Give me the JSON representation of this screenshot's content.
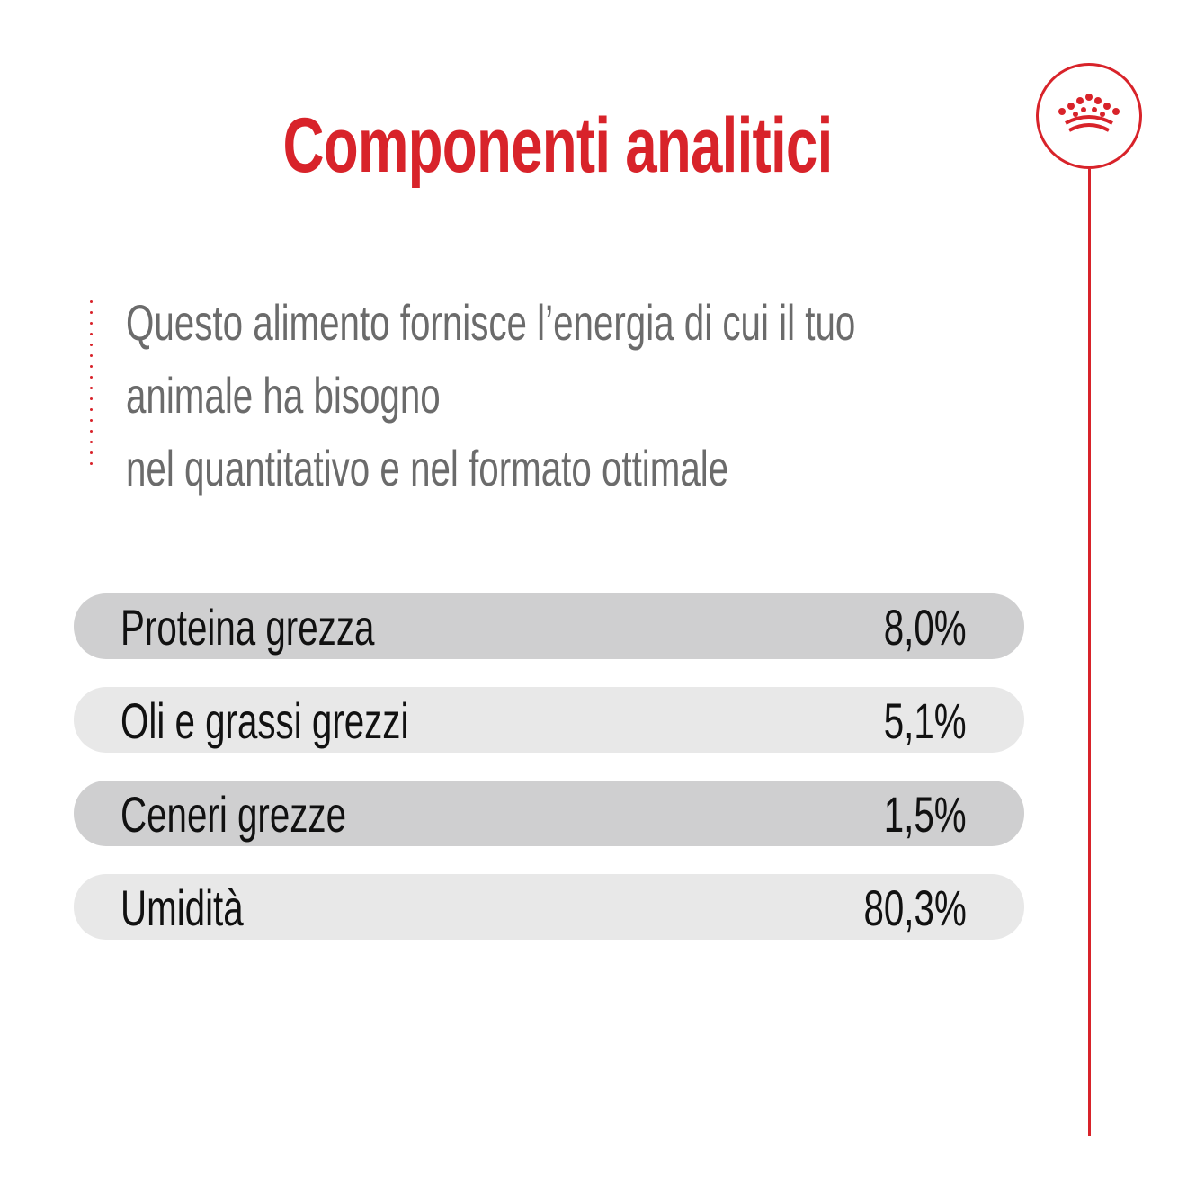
{
  "title": "Componenti analitici",
  "description": {
    "lines": [
      "Questo alimento fornisce l’energia di cui il tuo",
      "animale ha bisogno",
      "nel quantitativo e nel formato ottimale"
    ]
  },
  "components": [
    {
      "label": "Proteina grezza",
      "value": "8,0%"
    },
    {
      "label": "Oli e grassi grezzi",
      "value": "5,1%"
    },
    {
      "label": "Ceneri grezze",
      "value": "1,5%"
    },
    {
      "label": "Umidità",
      "value": "80,3%"
    }
  ],
  "colors": {
    "accent": "#d8232a",
    "text_dark": "#111111",
    "text_gray": "#6b6b6b",
    "row_dark": "#cfcfd0",
    "row_light": "#e8e8e8"
  },
  "icons": {
    "logo": "crown-icon"
  }
}
